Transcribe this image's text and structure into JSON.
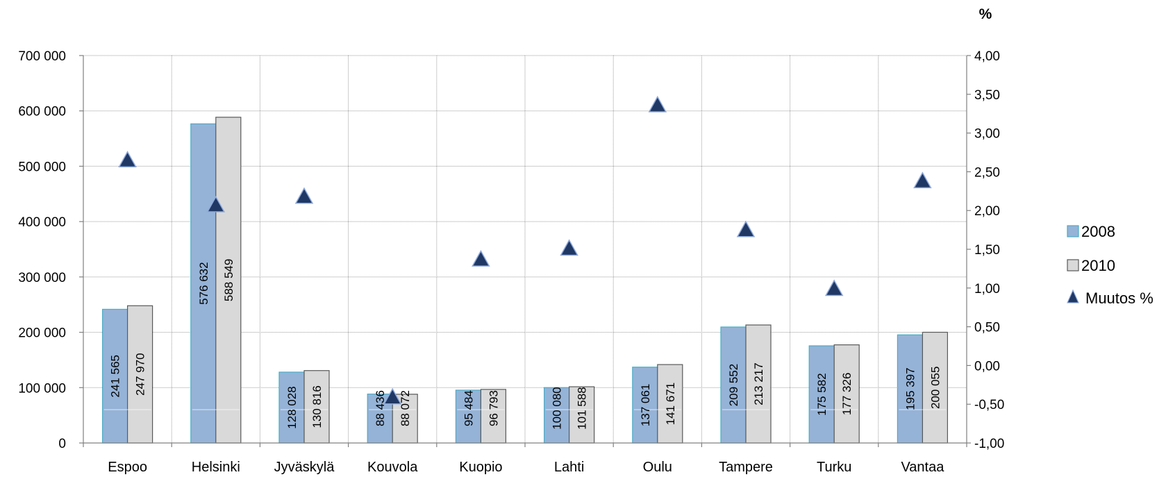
{
  "chart_data": {
    "type": "bar",
    "categories": [
      "Espoo",
      "Helsinki",
      "Jyväskylä",
      "Kouvola",
      "Kuopio",
      "Lahti",
      "Oulu",
      "Tampere",
      "Turku",
      "Vantaa"
    ],
    "series": [
      {
        "name": "2008",
        "type": "bar",
        "axis": "left",
        "color": "#95B3D7",
        "values": [
          241565,
          576632,
          128028,
          88436,
          95484,
          100080,
          137061,
          209552,
          175582,
          195397
        ],
        "labels": [
          "241 565",
          "576 632",
          "128 028",
          "88 436",
          "95 484",
          "100 080",
          "137 061",
          "209 552",
          "175 582",
          "195 397"
        ]
      },
      {
        "name": "2010",
        "type": "bar",
        "axis": "left",
        "color": "#D9D9D9",
        "values": [
          247970,
          588549,
          130816,
          88072,
          96793,
          101588,
          141671,
          213217,
          177326,
          200055
        ],
        "labels": [
          "247 970",
          "588 549",
          "130 816",
          "88 072",
          "96 793",
          "101 588",
          "141 671",
          "213 217",
          "177 326",
          "200 055"
        ]
      },
      {
        "name": "Muutos %",
        "type": "scatter",
        "axis": "right",
        "marker": "triangle",
        "color": "#1F3864",
        "values": [
          2.65,
          2.07,
          2.18,
          -0.41,
          1.37,
          1.51,
          3.36,
          1.75,
          0.99,
          2.38
        ]
      }
    ],
    "ylim": [
      0,
      700000
    ],
    "yticks": [
      0,
      100000,
      200000,
      300000,
      400000,
      500000,
      600000,
      700000
    ],
    "ytick_labels": [
      "0",
      "100 000",
      "200 000",
      "300 000",
      "400 000",
      "500 000",
      "600 000",
      "700 000"
    ],
    "y2lim": [
      -1.0,
      4.0
    ],
    "y2ticks": [
      -1.0,
      -0.5,
      0.0,
      0.5,
      1.0,
      1.5,
      2.0,
      2.5,
      3.0,
      3.5,
      4.0
    ],
    "y2tick_labels": [
      "-1,00",
      "-0,50",
      "0,00",
      "0,50",
      "1,00",
      "1,50",
      "2,00",
      "2,50",
      "3,00",
      "3,50",
      "4,00"
    ],
    "y2label": "%",
    "grid": true,
    "legend": "right"
  }
}
